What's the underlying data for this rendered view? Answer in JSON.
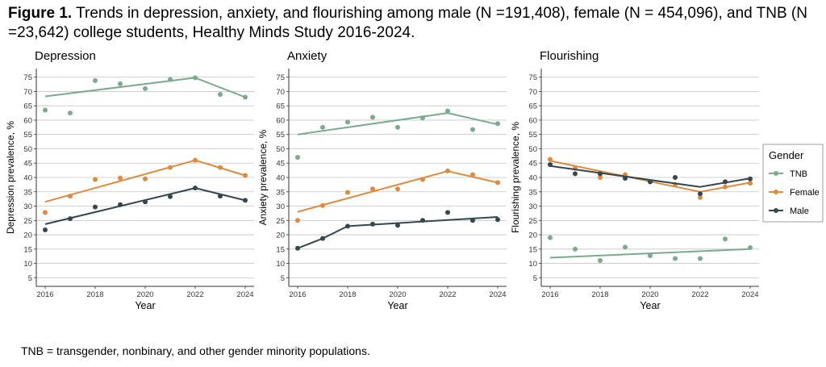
{
  "figure": {
    "title_bold": "Figure 1.",
    "title_text": "Trends in depression, anxiety, and flourishing among male (N =191,408), female (N = 454,096), and TNB (N =23,642) college students, Healthy Minds Study 2016-2024.",
    "footnote": "TNB = transgender, nonbinary, and other gender minority populations."
  },
  "legend": {
    "title": "Gender",
    "placement": "right",
    "items": [
      {
        "label": "TNB",
        "color": "#7aab8e"
      },
      {
        "label": "Female",
        "color": "#e08a3c"
      },
      {
        "label": "Male",
        "color": "#34474f"
      }
    ]
  },
  "chart_data": [
    {
      "type": "line",
      "title": "Depression",
      "xlabel": "Year",
      "ylabel": "Depression prevalence, %",
      "x": [
        2016,
        2017,
        2018,
        2019,
        2020,
        2021,
        2022,
        2023,
        2024
      ],
      "xticks": [
        "2016",
        "2018",
        "2020",
        "2022",
        "2024"
      ],
      "yticks": [
        "5",
        "10",
        "15",
        "20",
        "25",
        "30",
        "35",
        "40",
        "45",
        "50",
        "55",
        "60",
        "65",
        "70",
        "75"
      ],
      "ylim": [
        2,
        78
      ],
      "grid": true,
      "series": [
        {
          "name": "TNB",
          "color": "#7aab8e",
          "points": [
            63.5,
            62.5,
            73.8,
            72.7,
            71.0,
            74.2,
            74.8,
            69.0,
            68.0
          ],
          "trend": [
            [
              2016,
              68.3
            ],
            [
              2022,
              74.8
            ],
            [
              2024,
              68.0
            ]
          ]
        },
        {
          "name": "Female",
          "color": "#e08a3c",
          "points": [
            27.8,
            33.5,
            39.3,
            39.8,
            39.5,
            43.5,
            46.0,
            43.5,
            40.7
          ],
          "trend": [
            [
              2016,
              31.5
            ],
            [
              2022,
              46.0
            ],
            [
              2024,
              40.7
            ]
          ]
        },
        {
          "name": "Male",
          "color": "#34474f",
          "points": [
            21.7,
            25.6,
            29.7,
            30.5,
            31.5,
            33.3,
            36.3,
            33.5,
            32.0
          ],
          "trend": [
            [
              2016,
              23.7
            ],
            [
              2022,
              36.3
            ],
            [
              2024,
              32.0
            ]
          ]
        }
      ]
    },
    {
      "type": "line",
      "title": "Anxiety",
      "xlabel": "Year",
      "ylabel": "Anxiety prevalence, %",
      "x": [
        2016,
        2017,
        2018,
        2019,
        2020,
        2021,
        2022,
        2023,
        2024
      ],
      "xticks": [
        "2016",
        "2018",
        "2020",
        "2022",
        "2024"
      ],
      "yticks": [
        "5",
        "10",
        "15",
        "20",
        "25",
        "30",
        "35",
        "40",
        "45",
        "50",
        "55",
        "60",
        "65",
        "70",
        "75"
      ],
      "ylim": [
        2,
        78
      ],
      "grid": true,
      "series": [
        {
          "name": "TNB",
          "color": "#7aab8e",
          "points": [
            47.0,
            57.5,
            59.3,
            61.0,
            57.5,
            60.8,
            63.2,
            56.7,
            58.8
          ],
          "trend": [
            [
              2016,
              55.0
            ],
            [
              2022,
              62.5
            ],
            [
              2024,
              58.5
            ]
          ]
        },
        {
          "name": "Female",
          "color": "#e08a3c",
          "points": [
            25.0,
            30.2,
            34.8,
            36.0,
            36.0,
            39.3,
            42.3,
            41.0,
            38.2
          ],
          "trend": [
            [
              2016,
              28.0
            ],
            [
              2022,
              42.2
            ],
            [
              2024,
              38.2
            ]
          ]
        },
        {
          "name": "Male",
          "color": "#34474f",
          "points": [
            15.3,
            18.7,
            23.0,
            23.7,
            23.3,
            25.0,
            27.8,
            25.0,
            25.3
          ],
          "trend": [
            [
              2016,
              15.3
            ],
            [
              2017,
              18.7
            ],
            [
              2018,
              23.0
            ],
            [
              2024,
              26.2
            ]
          ]
        }
      ]
    },
    {
      "type": "line",
      "title": "Flourishing",
      "xlabel": "Year",
      "ylabel": "Flourishing prevalence, %",
      "x": [
        2016,
        2017,
        2018,
        2019,
        2020,
        2021,
        2022,
        2023,
        2024
      ],
      "xticks": [
        "2016",
        "2018",
        "2020",
        "2022",
        "2024"
      ],
      "yticks": [
        "5",
        "10",
        "15",
        "20",
        "25",
        "30",
        "35",
        "40",
        "45",
        "50",
        "55",
        "60",
        "65",
        "70",
        "75"
      ],
      "ylim": [
        2,
        78
      ],
      "grid": true,
      "series": [
        {
          "name": "TNB",
          "color": "#7aab8e",
          "points": [
            19.0,
            15.0,
            11.0,
            15.7,
            12.7,
            11.7,
            11.7,
            18.5,
            15.5
          ],
          "trend": [
            [
              2016,
              12.0
            ],
            [
              2024,
              15.0
            ]
          ]
        },
        {
          "name": "Female",
          "color": "#e08a3c",
          "points": [
            46.3,
            43.2,
            40.0,
            41.0,
            38.5,
            37.5,
            33.0,
            36.7,
            38.0
          ],
          "trend": [
            [
              2016,
              45.8
            ],
            [
              2022,
              35.0
            ],
            [
              2024,
              38.2
            ]
          ]
        },
        {
          "name": "Male",
          "color": "#34474f",
          "points": [
            44.5,
            41.3,
            41.3,
            39.7,
            38.5,
            40.0,
            34.3,
            38.5,
            39.5
          ],
          "trend": [
            [
              2016,
              44.0
            ],
            [
              2022,
              36.7
            ],
            [
              2024,
              39.7
            ]
          ]
        }
      ]
    }
  ]
}
